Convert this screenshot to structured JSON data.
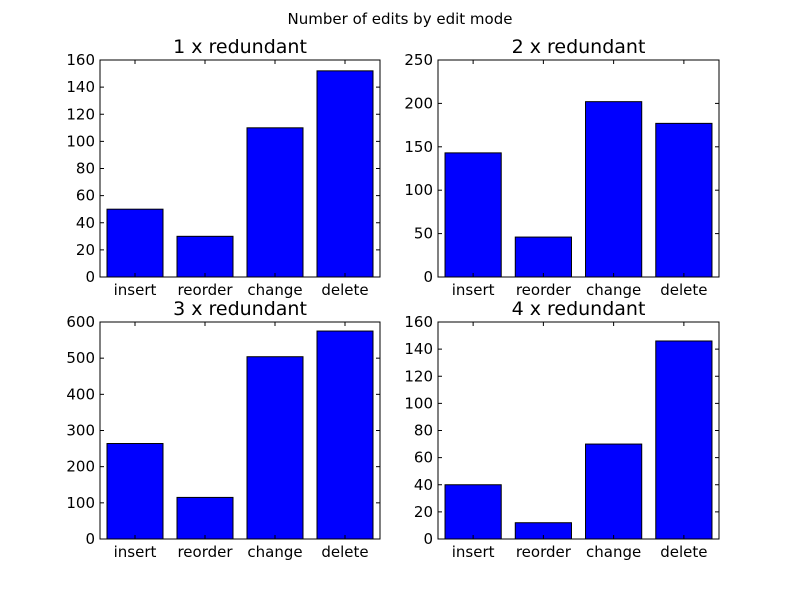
{
  "figure": {
    "title": "Number of edits by edit mode"
  },
  "chart_data": [
    {
      "type": "bar",
      "title": "1 x redundant",
      "categories": [
        "insert",
        "reorder",
        "change",
        "delete"
      ],
      "values": [
        50,
        30,
        110,
        152
      ],
      "ylim": [
        0,
        160
      ],
      "yticks": [
        0,
        20,
        40,
        60,
        80,
        100,
        120,
        140,
        160
      ],
      "grid": false,
      "bar_color": "#0000ff"
    },
    {
      "type": "bar",
      "title": "2 x redundant",
      "categories": [
        "insert",
        "reorder",
        "change",
        "delete"
      ],
      "values": [
        143,
        46,
        202,
        177
      ],
      "ylim": [
        0,
        250
      ],
      "yticks": [
        0,
        50,
        100,
        150,
        200,
        250
      ],
      "grid": false,
      "bar_color": "#0000ff"
    },
    {
      "type": "bar",
      "title": "3 x redundant",
      "categories": [
        "insert",
        "reorder",
        "change",
        "delete"
      ],
      "values": [
        264,
        115,
        504,
        575
      ],
      "ylim": [
        0,
        600
      ],
      "yticks": [
        0,
        100,
        200,
        300,
        400,
        500,
        600
      ],
      "grid": false,
      "bar_color": "#0000ff"
    },
    {
      "type": "bar",
      "title": "4 x redundant",
      "categories": [
        "insert",
        "reorder",
        "change",
        "delete"
      ],
      "values": [
        40,
        12,
        70,
        146
      ],
      "ylim": [
        0,
        160
      ],
      "yticks": [
        0,
        20,
        40,
        60,
        80,
        100,
        120,
        140,
        160
      ],
      "grid": false,
      "bar_color": "#0000ff"
    }
  ]
}
